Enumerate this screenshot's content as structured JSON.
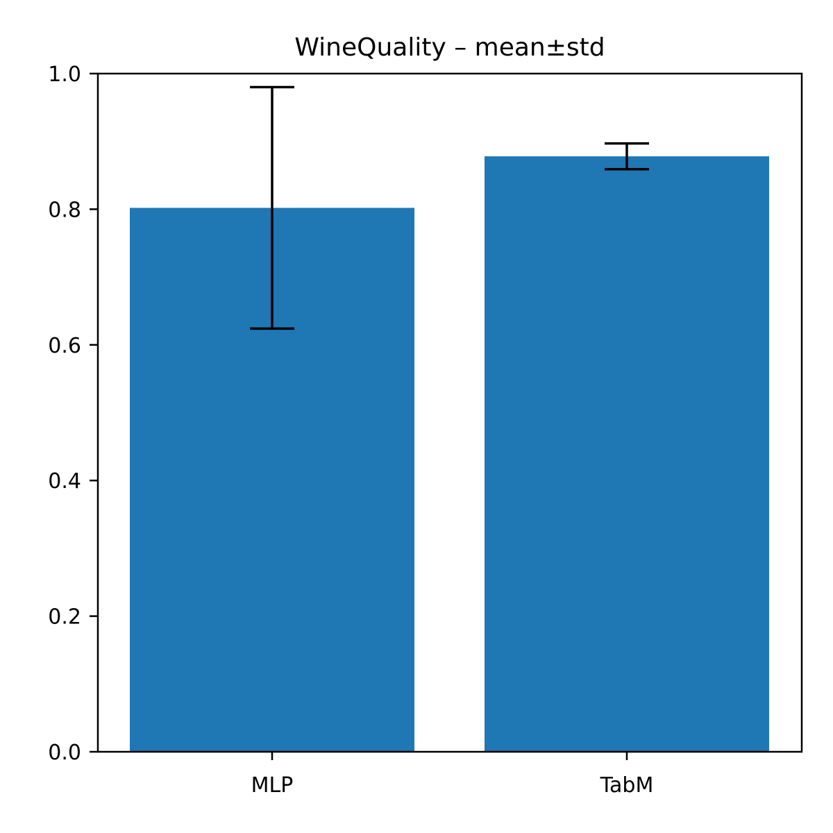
{
  "chart_data": {
    "type": "bar",
    "title": "WineQuality – mean±std",
    "xlabel": "",
    "ylabel": "",
    "categories": [
      "MLP",
      "TabM"
    ],
    "values": [
      0.802,
      0.878
    ],
    "errors": [
      0.178,
      0.019
    ],
    "ylim": [
      0.0,
      1.0
    ],
    "yticks": [
      "0.0",
      "0.2",
      "0.4",
      "0.6",
      "0.8",
      "1.0"
    ],
    "grid": false,
    "legend": false,
    "bar_color": "#1f77b4",
    "error_color": "#000000"
  }
}
